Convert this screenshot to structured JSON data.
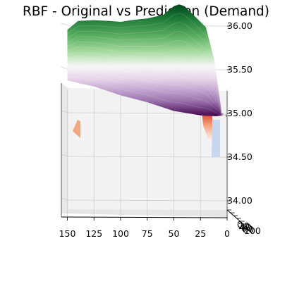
{
  "chart_data": {
    "type": "surface",
    "title": "RBF - Original vs Prediction (Demand)",
    "xlabel": "",
    "ylabel": "",
    "zlabel": "",
    "x_ticks": [
      "150",
      "125",
      "100",
      "75",
      "50",
      "25",
      "0"
    ],
    "y_ticks": [
      "0",
      "20",
      "40",
      "60",
      "80",
      "100"
    ],
    "z_ticks": [
      "34.00",
      "34.50",
      "35.00",
      "35.50",
      "36.00"
    ],
    "x_range": [
      0,
      160
    ],
    "y_range": [
      0,
      100
    ],
    "z_range": [
      33.8,
      36.3
    ],
    "grid": true,
    "series": [
      {
        "colormap": "Greens-Purples (diverging)",
        "top_profile": {
          "x": [
            150,
            140,
            125,
            110,
            100,
            90,
            75,
            60,
            50,
            45,
            40,
            30,
            20,
            12,
            5,
            0
          ],
          "z": [
            35.95,
            36.05,
            36.06,
            36.05,
            36.04,
            36.06,
            36.08,
            36.12,
            36.22,
            36.24,
            36.22,
            36.1,
            35.98,
            35.6,
            35.0,
            34.95
          ]
        },
        "bottom_profile": {
          "x": [
            150,
            125,
            100,
            75,
            50,
            25,
            10,
            0
          ],
          "z": [
            35.37,
            35.3,
            35.2,
            35.12,
            35.02,
            34.97,
            34.96,
            34.98
          ]
        }
      },
      {
        "colormap": "coolwarm",
        "visible_fragments": [
          "left-edge",
          "right-edge"
        ]
      }
    ]
  }
}
